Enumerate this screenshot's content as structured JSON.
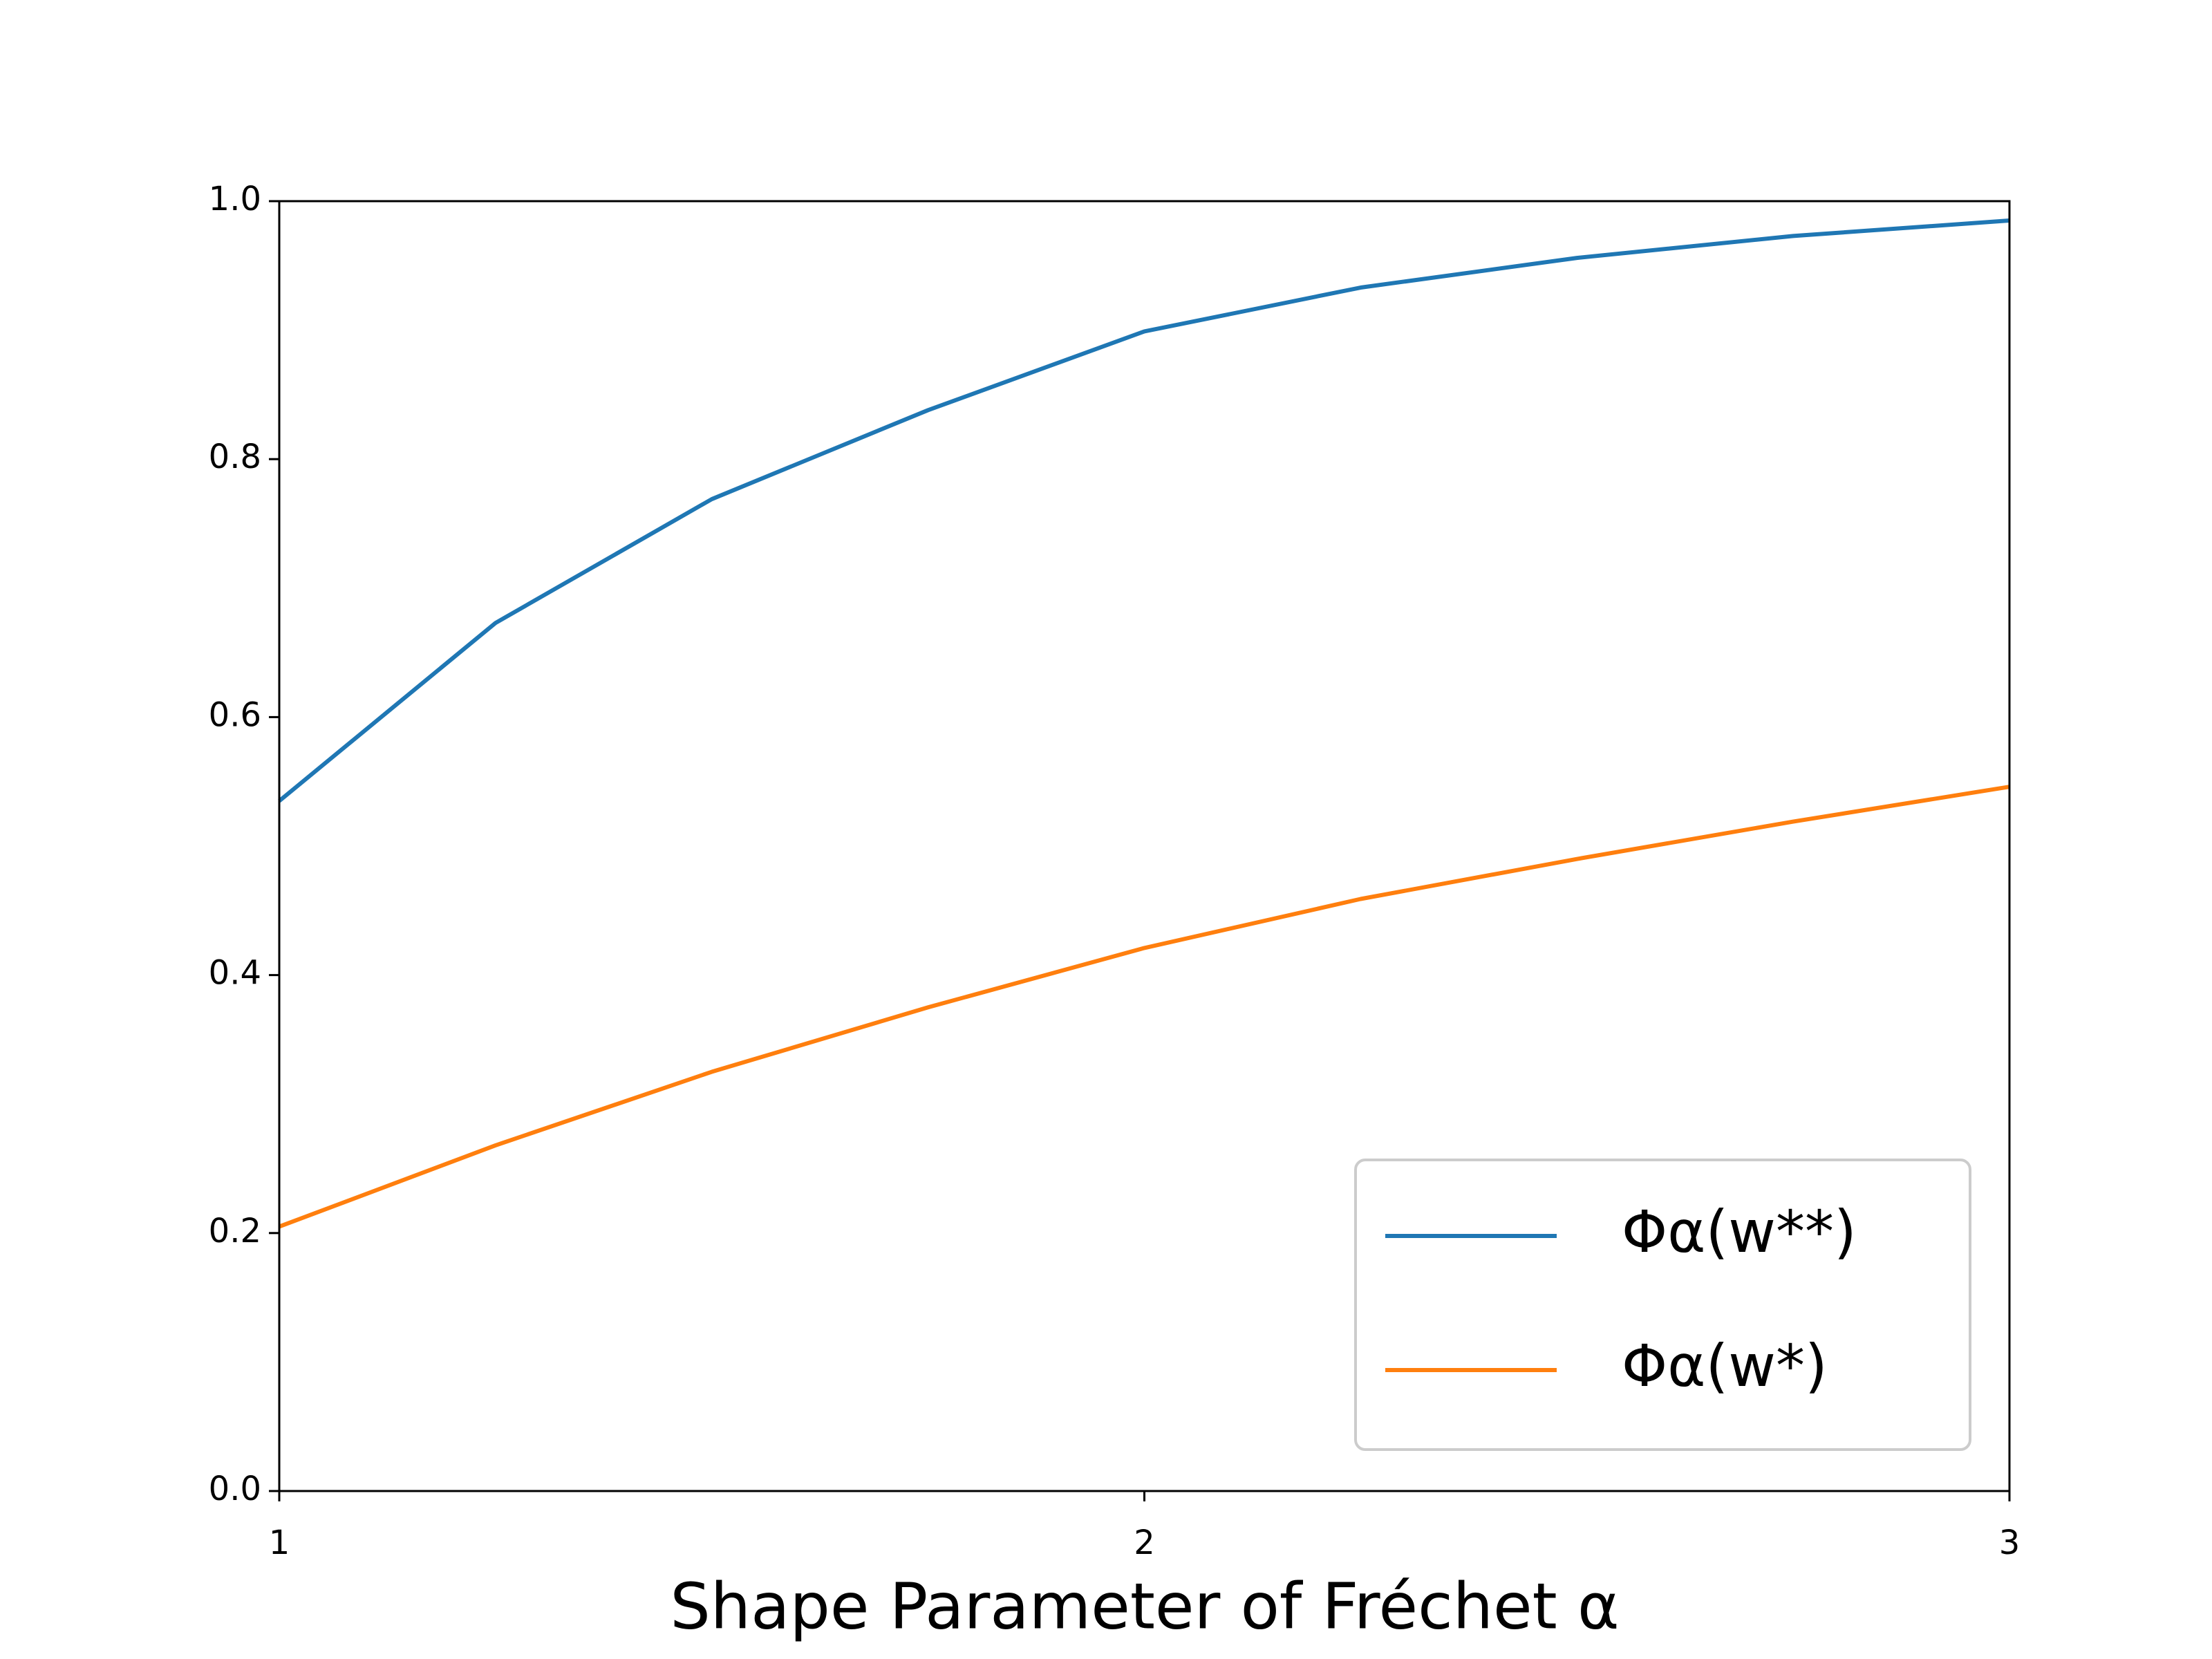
{
  "chart_data": {
    "type": "line",
    "x_label": "Shape Parameter of Fréchet α",
    "x": [
      1,
      1.25,
      1.5,
      1.75,
      2,
      2.25,
      2.5,
      2.75,
      3
    ],
    "series": [
      {
        "name": "Φα(w**)",
        "color": "#1f77b4",
        "values": [
          0.535,
          0.673,
          0.769,
          0.838,
          0.899,
          0.933,
          0.956,
          0.973,
          0.985
        ]
      },
      {
        "name": "Φα(w*)",
        "color": "#ff7f0e",
        "values": [
          0.205,
          0.268,
          0.325,
          0.375,
          0.421,
          0.459,
          0.49,
          0.519,
          0.546
        ]
      }
    ],
    "xlim": [
      1,
      3
    ],
    "xticks": [
      1,
      2,
      3
    ],
    "ylim": [
      0,
      1
    ],
    "yticks": [
      {
        "value": 0,
        "label": "0.0"
      },
      {
        "value": 0.2,
        "label": "0.2"
      },
      {
        "value": 0.4,
        "label": "0.4"
      },
      {
        "value": 0.6,
        "label": "0.6"
      },
      {
        "value": 0.8,
        "label": "0.8"
      },
      {
        "value": 1,
        "label": "1.0"
      }
    ],
    "grid": false,
    "legend": "lower right"
  }
}
